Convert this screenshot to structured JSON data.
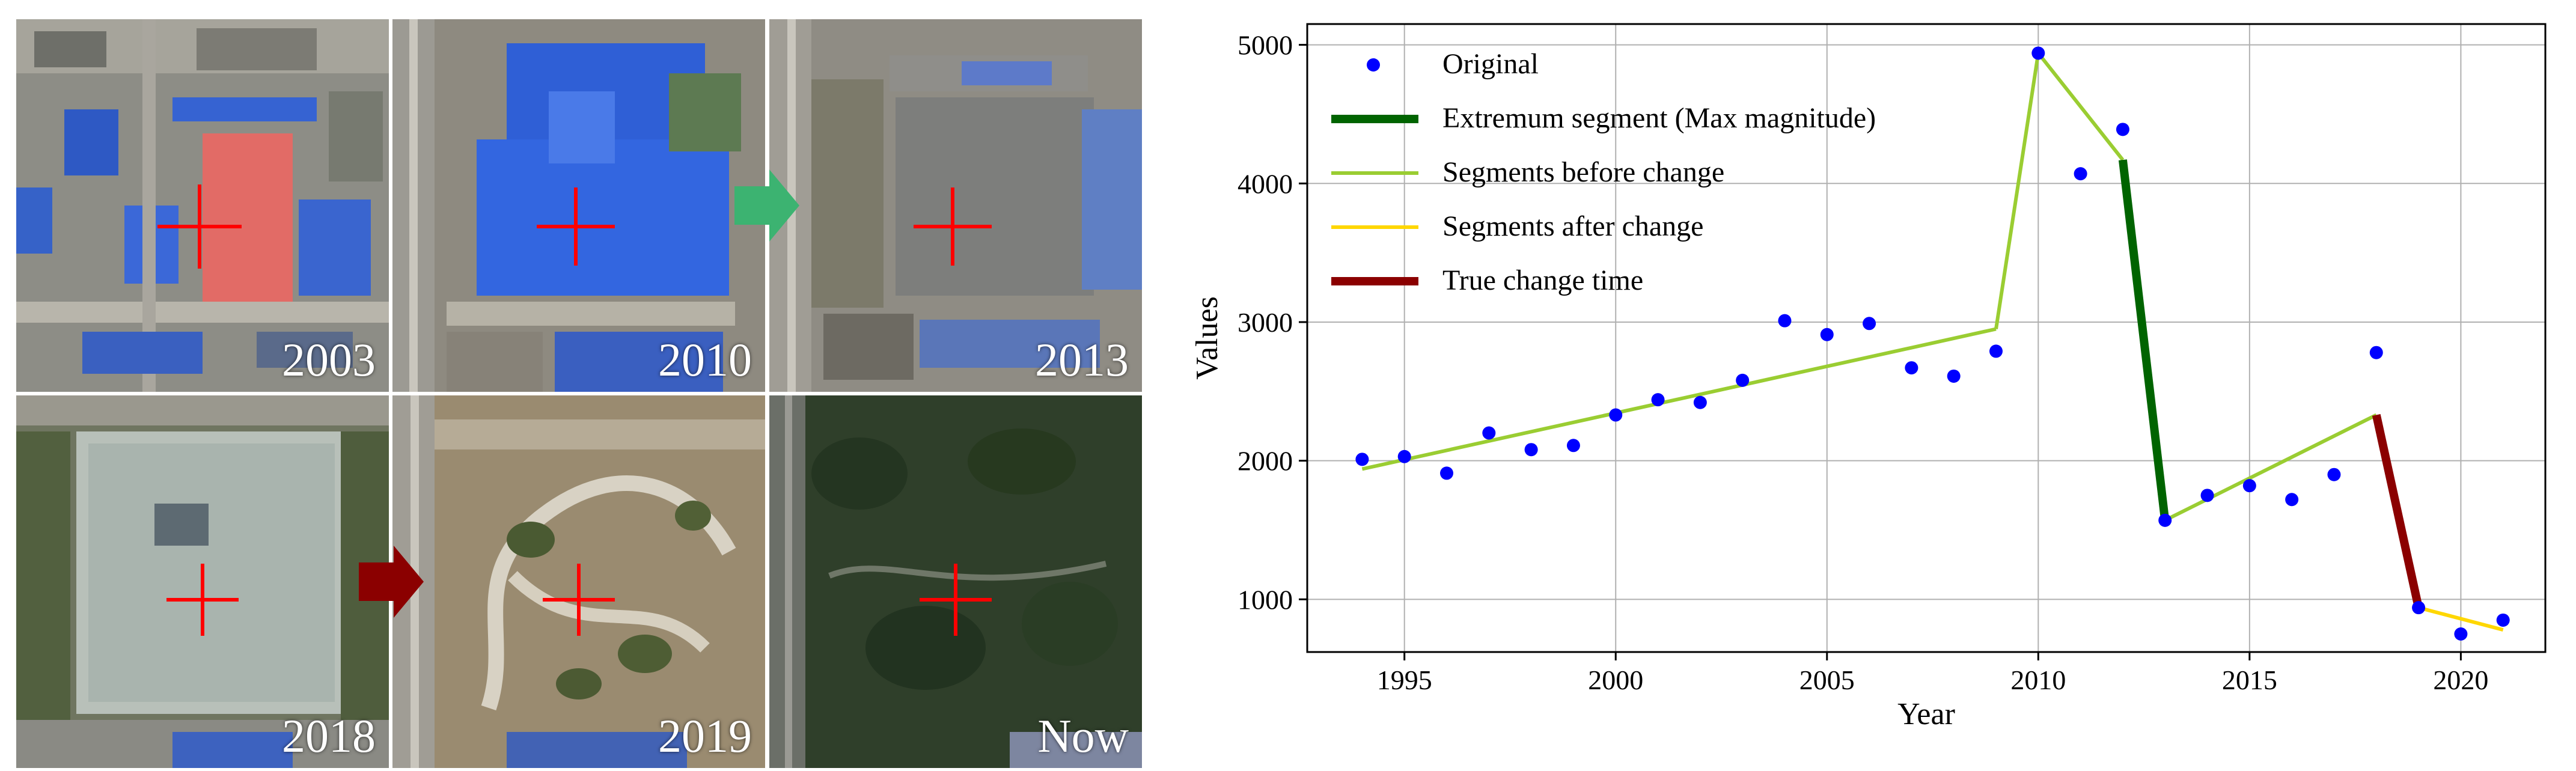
{
  "panel_labels": [
    "2003",
    "2010",
    "2013",
    "2018",
    "2019",
    "Now"
  ],
  "colors": {
    "original_points": "#0000ff",
    "extremum_segment": "#006400",
    "segments_before": "#9acd32",
    "segments_after": "#ffd700",
    "true_change": "#8b0000",
    "arrow_green": "#3cb371",
    "arrow_red": "#8b0000",
    "crosshair": "#ff0000"
  },
  "chart_data": {
    "type": "line",
    "xlabel": "Year",
    "ylabel": "Values",
    "xlim": [
      1992.7,
      2022.0
    ],
    "ylim": [
      620,
      5150
    ],
    "xticks": [
      1995,
      2000,
      2005,
      2010,
      2015,
      2020
    ],
    "yticks": [
      1000,
      2000,
      3000,
      4000,
      5000
    ],
    "grid": true,
    "legend_position": "top-left",
    "legend": [
      "Original",
      "Extremum segment (Max magnitude)",
      "Segments before change",
      "Segments after change",
      "True change time"
    ],
    "original": {
      "x": [
        1994,
        1995,
        1996,
        1997,
        1998,
        1999,
        2000,
        2001,
        2002,
        2003,
        2004,
        2005,
        2006,
        2007,
        2008,
        2009,
        2010,
        2011,
        2012,
        2013,
        2014,
        2015,
        2016,
        2017,
        2018,
        2019,
        2020,
        2021
      ],
      "y": [
        2010,
        2030,
        1910,
        2200,
        2080,
        2110,
        2330,
        2440,
        2420,
        2580,
        3010,
        2910,
        2990,
        2670,
        2610,
        2790,
        4940,
        4070,
        4390,
        1570,
        1750,
        1820,
        1720,
        1900,
        2780,
        940,
        750,
        850
      ]
    },
    "segments_before": [
      {
        "x": [
          1994,
          2009
        ],
        "y": [
          1940,
          2950
        ]
      },
      {
        "x": [
          2009,
          2010
        ],
        "y": [
          2950,
          4940
        ]
      },
      {
        "x": [
          2010,
          2012
        ],
        "y": [
          4940,
          4170
        ]
      },
      {
        "x": [
          2013,
          2018
        ],
        "y": [
          1570,
          2330
        ]
      }
    ],
    "extremum_segment": {
      "x": [
        2012,
        2013
      ],
      "y": [
        4170,
        1570
      ]
    },
    "true_change": {
      "x": [
        2018,
        2019
      ],
      "y": [
        2330,
        940
      ]
    },
    "segments_after": {
      "x": [
        2019,
        2021
      ],
      "y": [
        940,
        780
      ]
    }
  }
}
